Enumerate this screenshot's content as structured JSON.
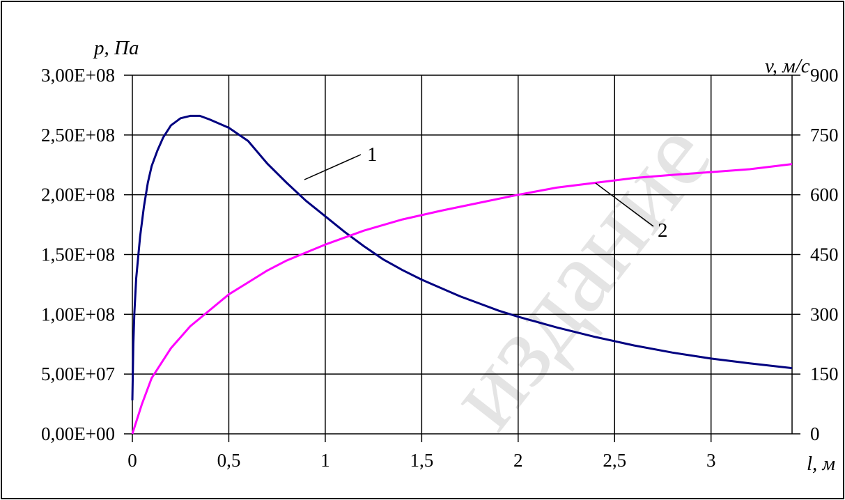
{
  "chart_data": {
    "type": "line",
    "y_label": "p, Па",
    "y2_label": "v, м/с",
    "x_label": "l, м",
    "x_ticks": [
      "0",
      "0,5",
      "1",
      "1,5",
      "2",
      "2,5",
      "3"
    ],
    "x_tick_values": [
      0,
      0.5,
      1,
      1.5,
      2,
      2.5,
      3
    ],
    "xlim": [
      0,
      3.42
    ],
    "y_ticks": [
      "0,00E+00",
      "5,00E+07",
      "1,00E+08",
      "1,50E+08",
      "2,00E+08",
      "2,50E+08",
      "3,00E+08"
    ],
    "y_tick_values": [
      0,
      50000000,
      100000000,
      150000000,
      200000000,
      250000000,
      300000000
    ],
    "ylim": [
      0,
      300000000
    ],
    "y2_ticks": [
      "0",
      "150",
      "300",
      "450",
      "600",
      "750",
      "900"
    ],
    "y2_tick_values": [
      0,
      150,
      300,
      450,
      600,
      750,
      900
    ],
    "y2lim": [
      0,
      900
    ],
    "grid": true,
    "series": [
      {
        "name": "1",
        "axis": "left",
        "color": "#000080",
        "x": [
          0,
          0.005,
          0.01,
          0.02,
          0.04,
          0.06,
          0.08,
          0.1,
          0.13,
          0.16,
          0.2,
          0.25,
          0.3,
          0.35,
          0.4,
          0.5,
          0.6,
          0.7,
          0.8,
          0.9,
          1.0,
          1.1,
          1.2,
          1.3,
          1.4,
          1.5,
          1.6,
          1.7,
          1.8,
          1.9,
          2.0,
          2.2,
          2.4,
          2.6,
          2.8,
          3.0,
          3.2,
          3.42
        ],
        "y": [
          28000000,
          75000000,
          100000000,
          130000000,
          165000000,
          190000000,
          210000000,
          224000000,
          237000000,
          248000000,
          258000000,
          264000000,
          266000000,
          266000000,
          263000000,
          256000000,
          245000000,
          226000000,
          210000000,
          195000000,
          182000000,
          169000000,
          157000000,
          146000000,
          137000000,
          129000000,
          122000000,
          115000000,
          109000000,
          103000000,
          98000000,
          89000000,
          81000000,
          74000000,
          68000000,
          63000000,
          59000000,
          55000000
        ]
      },
      {
        "name": "2",
        "axis": "right",
        "color": "#ff00ff",
        "x": [
          0,
          0.05,
          0.1,
          0.2,
          0.3,
          0.4,
          0.5,
          0.6,
          0.7,
          0.8,
          0.9,
          1.0,
          1.2,
          1.4,
          1.6,
          1.8,
          2.0,
          2.2,
          2.4,
          2.6,
          2.8,
          3.0,
          3.2,
          3.42
        ],
        "y": [
          0,
          75,
          140,
          215,
          270,
          310,
          350,
          380,
          410,
          435,
          455,
          475,
          510,
          538,
          560,
          580,
          600,
          618,
          630,
          642,
          650,
          657,
          664,
          677
        ]
      }
    ],
    "annotations": [
      "1",
      "2"
    ]
  },
  "watermark_text": "издание"
}
